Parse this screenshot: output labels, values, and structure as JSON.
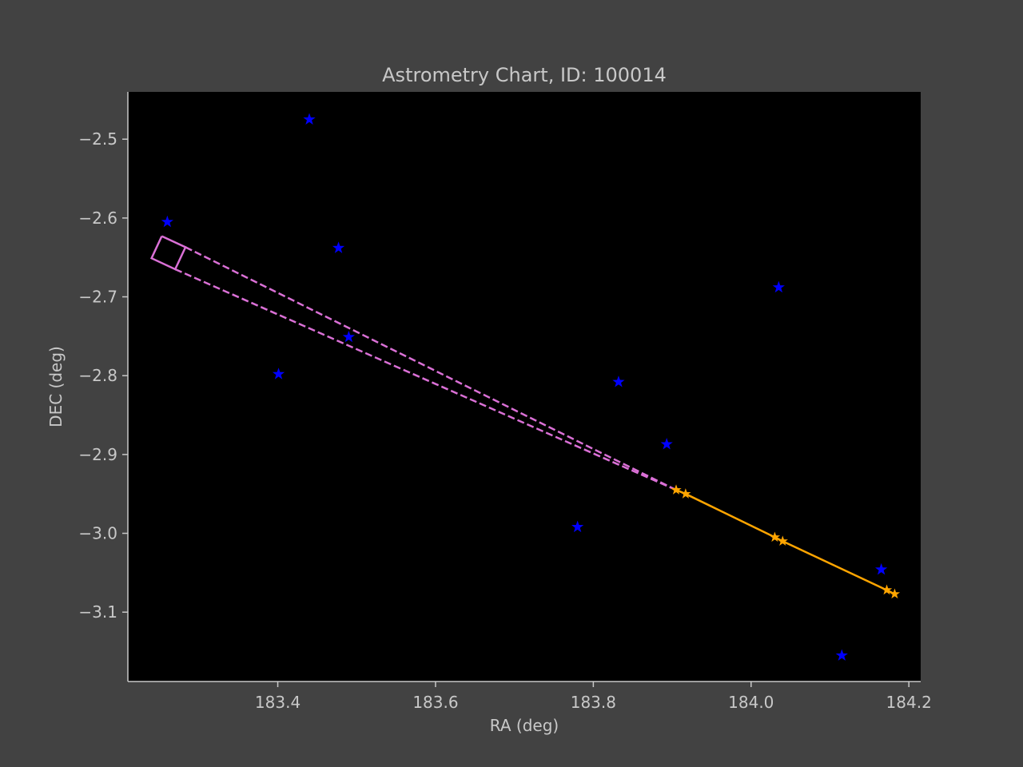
{
  "chart_data": {
    "type": "scatter",
    "title": "Astrometry Chart, ID: 100014",
    "xlabel": "RA (deg)",
    "ylabel": "DEC (deg)",
    "xlim": [
      183.21,
      184.215
    ],
    "ylim": [
      -3.188,
      -2.44
    ],
    "xticks": [
      183.4,
      183.6,
      183.8,
      184.0,
      184.2
    ],
    "xtick_labels": [
      "183.4",
      "183.6",
      "183.8",
      "184.0",
      "184.2"
    ],
    "yticks": [
      -2.5,
      -2.6,
      -2.7,
      -2.8,
      -2.9,
      -3.0,
      -3.1
    ],
    "ytick_labels": [
      "−2.5",
      "−2.6",
      "−2.7",
      "−2.8",
      "−2.9",
      "−3.0",
      "−3.1"
    ],
    "grid": false,
    "background_color": "#000000",
    "page_color": "#424242",
    "colors": {
      "field_stars": "#0000ff",
      "track": "#ffa500",
      "footprint": "#da70d6",
      "text": "#c8c8c8",
      "axes": "#c8c8c8"
    },
    "series": [
      {
        "marker": "star",
        "x": [
          183.26,
          183.44,
          183.477,
          183.49,
          183.401,
          183.832,
          183.893,
          183.78,
          184.035,
          184.165,
          184.115
        ],
        "y": [
          -2.605,
          -2.475,
          -2.638,
          -2.751,
          -2.798,
          -2.808,
          -2.887,
          -2.992,
          -2.688,
          -3.046,
          -3.155
        ]
      },
      {
        "marker": "star-line",
        "x": [
          183.905,
          183.917,
          184.03,
          184.04,
          184.172,
          184.182
        ],
        "y": [
          -2.945,
          -2.95,
          -3.005,
          -3.01,
          -3.072,
          -3.077
        ]
      }
    ],
    "footprint": {
      "box_x": [
        183.253,
        183.283,
        183.27,
        183.24,
        183.253
      ],
      "box_y": [
        -2.623,
        -2.637,
        -2.665,
        -2.651,
        -2.623
      ],
      "cone_upper_x": [
        183.283,
        183.905
      ],
      "cone_upper_y": [
        -2.637,
        -2.945
      ],
      "cone_lower_x": [
        183.27,
        183.905
      ],
      "cone_lower_y": [
        -2.665,
        -2.945
      ]
    }
  }
}
